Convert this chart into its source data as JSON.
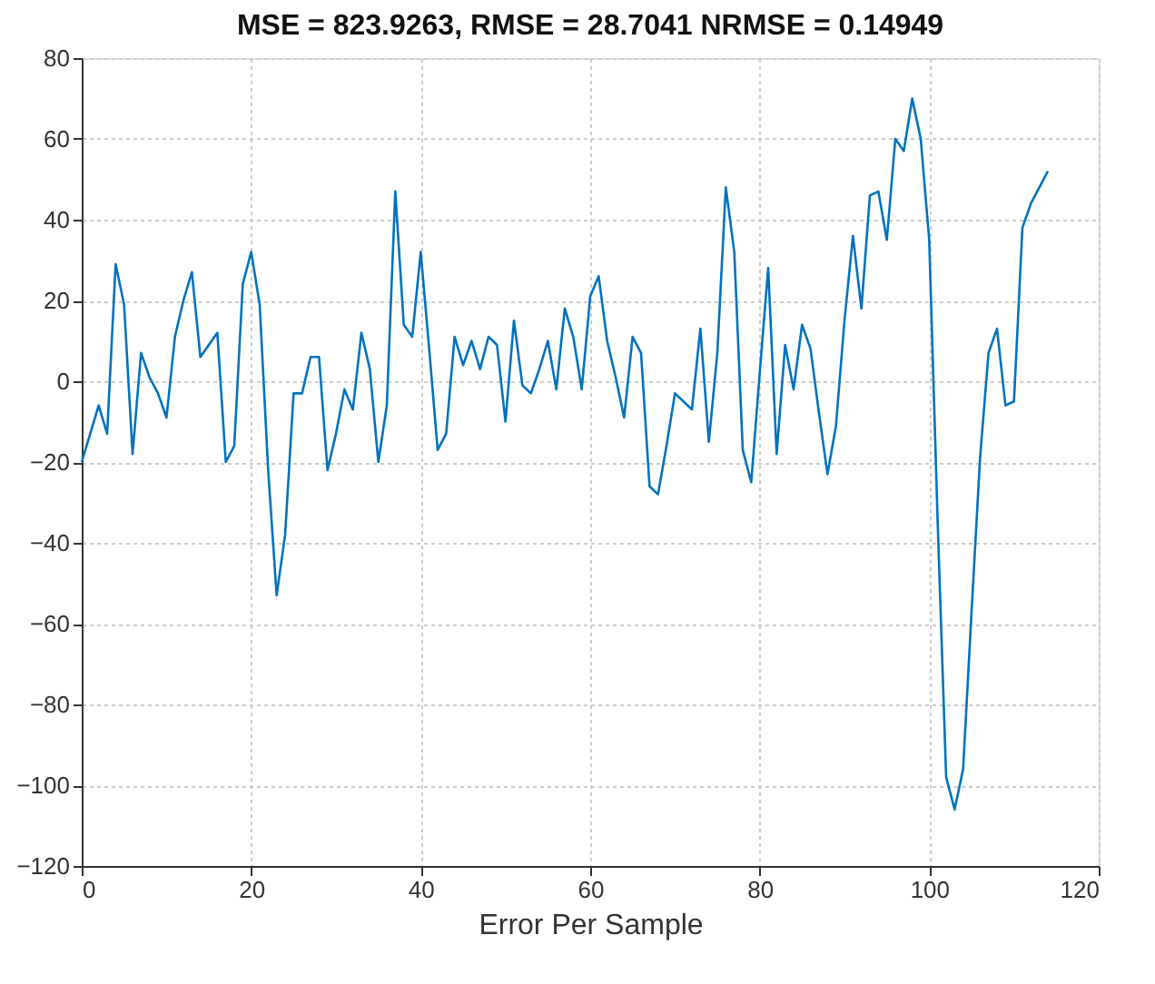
{
  "chart_data": {
    "type": "line",
    "title": "MSE = 823.9263, RMSE = 28.7041 NRMSE = 0.14949",
    "xlabel": "Error Per Sample",
    "x": [
      0,
      1,
      2,
      3,
      4,
      5,
      6,
      7,
      8,
      9,
      10,
      11,
      12,
      13,
      14,
      15,
      16,
      17,
      18,
      19,
      20,
      21,
      22,
      23,
      24,
      25,
      26,
      27,
      28,
      29,
      30,
      31,
      32,
      33,
      34,
      35,
      36,
      37,
      38,
      39,
      40,
      41,
      42,
      43,
      44,
      45,
      46,
      47,
      48,
      49,
      50,
      51,
      52,
      53,
      54,
      55,
      56,
      57,
      58,
      59,
      60,
      61,
      62,
      63,
      64,
      65,
      66,
      67,
      68,
      69,
      70,
      71,
      72,
      73,
      74,
      75,
      76,
      77,
      78,
      79,
      80,
      81,
      82,
      83,
      84,
      85,
      86,
      87,
      88,
      89,
      90,
      91,
      92,
      93,
      94,
      95,
      96,
      97,
      98,
      99,
      100,
      101,
      102,
      103,
      104,
      105,
      106,
      107,
      108,
      109,
      110,
      111,
      112,
      113,
      114
    ],
    "series": [
      {
        "color": "#0072bd",
        "values": [
          -20,
          -13,
          -6,
          -13,
          29,
          19,
          -18,
          7,
          1,
          -3,
          -9,
          11,
          20,
          27,
          6,
          9,
          12,
          -20,
          -16,
          24,
          32,
          19,
          -22,
          -53,
          -38,
          -3,
          -3,
          6,
          6,
          -22,
          -13,
          -2,
          -7,
          12,
          3,
          -20,
          -6,
          47,
          14,
          11,
          32,
          8,
          -17,
          -13,
          11,
          4,
          10,
          3,
          11,
          9,
          -10,
          15,
          -1,
          -3,
          3,
          10,
          -2,
          18,
          11,
          -2,
          21,
          26,
          10,
          1,
          -9,
          11,
          7,
          -26,
          -28,
          -16,
          -3,
          -5,
          -7,
          13,
          -15,
          7,
          48,
          32,
          -17,
          -25,
          2,
          28,
          -18,
          9,
          -2,
          14,
          8,
          -8,
          -23,
          -11,
          15,
          36,
          18,
          46,
          47,
          35,
          60,
          57,
          70,
          60,
          35,
          -35,
          -98,
          -106,
          -96,
          -57,
          -19,
          7,
          13,
          -6,
          -5,
          38,
          44,
          48,
          52
        ]
      }
    ],
    "xlim": [
      0,
      120
    ],
    "xticks": [
      0,
      20,
      40,
      60,
      80,
      100,
      120
    ],
    "ylim": [
      -120,
      80
    ],
    "yticks": [
      -120,
      -100,
      -80,
      -60,
      -40,
      -20,
      0,
      20,
      40,
      60,
      80
    ],
    "grid": true,
    "marker": "none",
    "line_style": "solid"
  }
}
